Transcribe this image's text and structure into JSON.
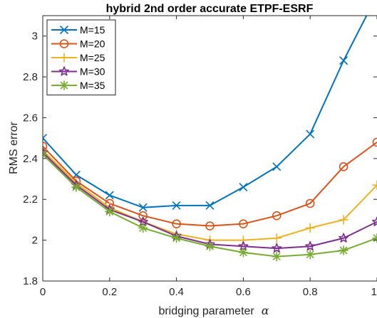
{
  "chart_data": {
    "type": "line",
    "title": "hybrid 2nd order accurate ETPF-ESRF",
    "xlabel": "bridging parameter",
    "xlabel_symbol": "α",
    "ylabel": "RMS error",
    "xlim": [
      0,
      1
    ],
    "ylim": [
      1.8,
      3.1
    ],
    "xticks": [
      "0",
      "0.2",
      "0.4",
      "0.6",
      "0.8",
      "1"
    ],
    "yticks": [
      "1.8",
      "2",
      "2.2",
      "2.4",
      "2.6",
      "2.8",
      "3"
    ],
    "x": [
      0,
      0.1,
      0.2,
      0.3,
      0.4,
      0.5,
      0.6,
      0.7,
      0.8,
      0.9,
      1.0
    ],
    "legend_position": "top-left",
    "grid": false,
    "series": [
      {
        "name": "M=15",
        "marker": "x",
        "color": "#0072BD",
        "values": [
          2.5,
          2.32,
          2.22,
          2.16,
          2.17,
          2.17,
          2.26,
          2.36,
          2.52,
          2.88,
          3.2
        ]
      },
      {
        "name": "M=20",
        "marker": "o",
        "color": "#D95319",
        "values": [
          2.46,
          2.29,
          2.18,
          2.12,
          2.08,
          2.07,
          2.08,
          2.12,
          2.18,
          2.36,
          2.48
        ]
      },
      {
        "name": "M=25",
        "marker": "+",
        "color": "#EDB120",
        "values": [
          2.44,
          2.28,
          2.16,
          2.09,
          2.03,
          2.0,
          2.0,
          2.01,
          2.06,
          2.1,
          2.27
        ]
      },
      {
        "name": "M=30",
        "marker": "star",
        "color": "#7E2F8E",
        "values": [
          2.43,
          2.27,
          2.15,
          2.09,
          2.02,
          1.98,
          1.97,
          1.96,
          1.97,
          2.01,
          2.09
        ]
      },
      {
        "name": "M=35",
        "marker": "asterisk",
        "color": "#77AC30",
        "values": [
          2.42,
          2.26,
          2.14,
          2.06,
          2.01,
          1.97,
          1.94,
          1.92,
          1.93,
          1.95,
          2.01
        ]
      }
    ]
  }
}
